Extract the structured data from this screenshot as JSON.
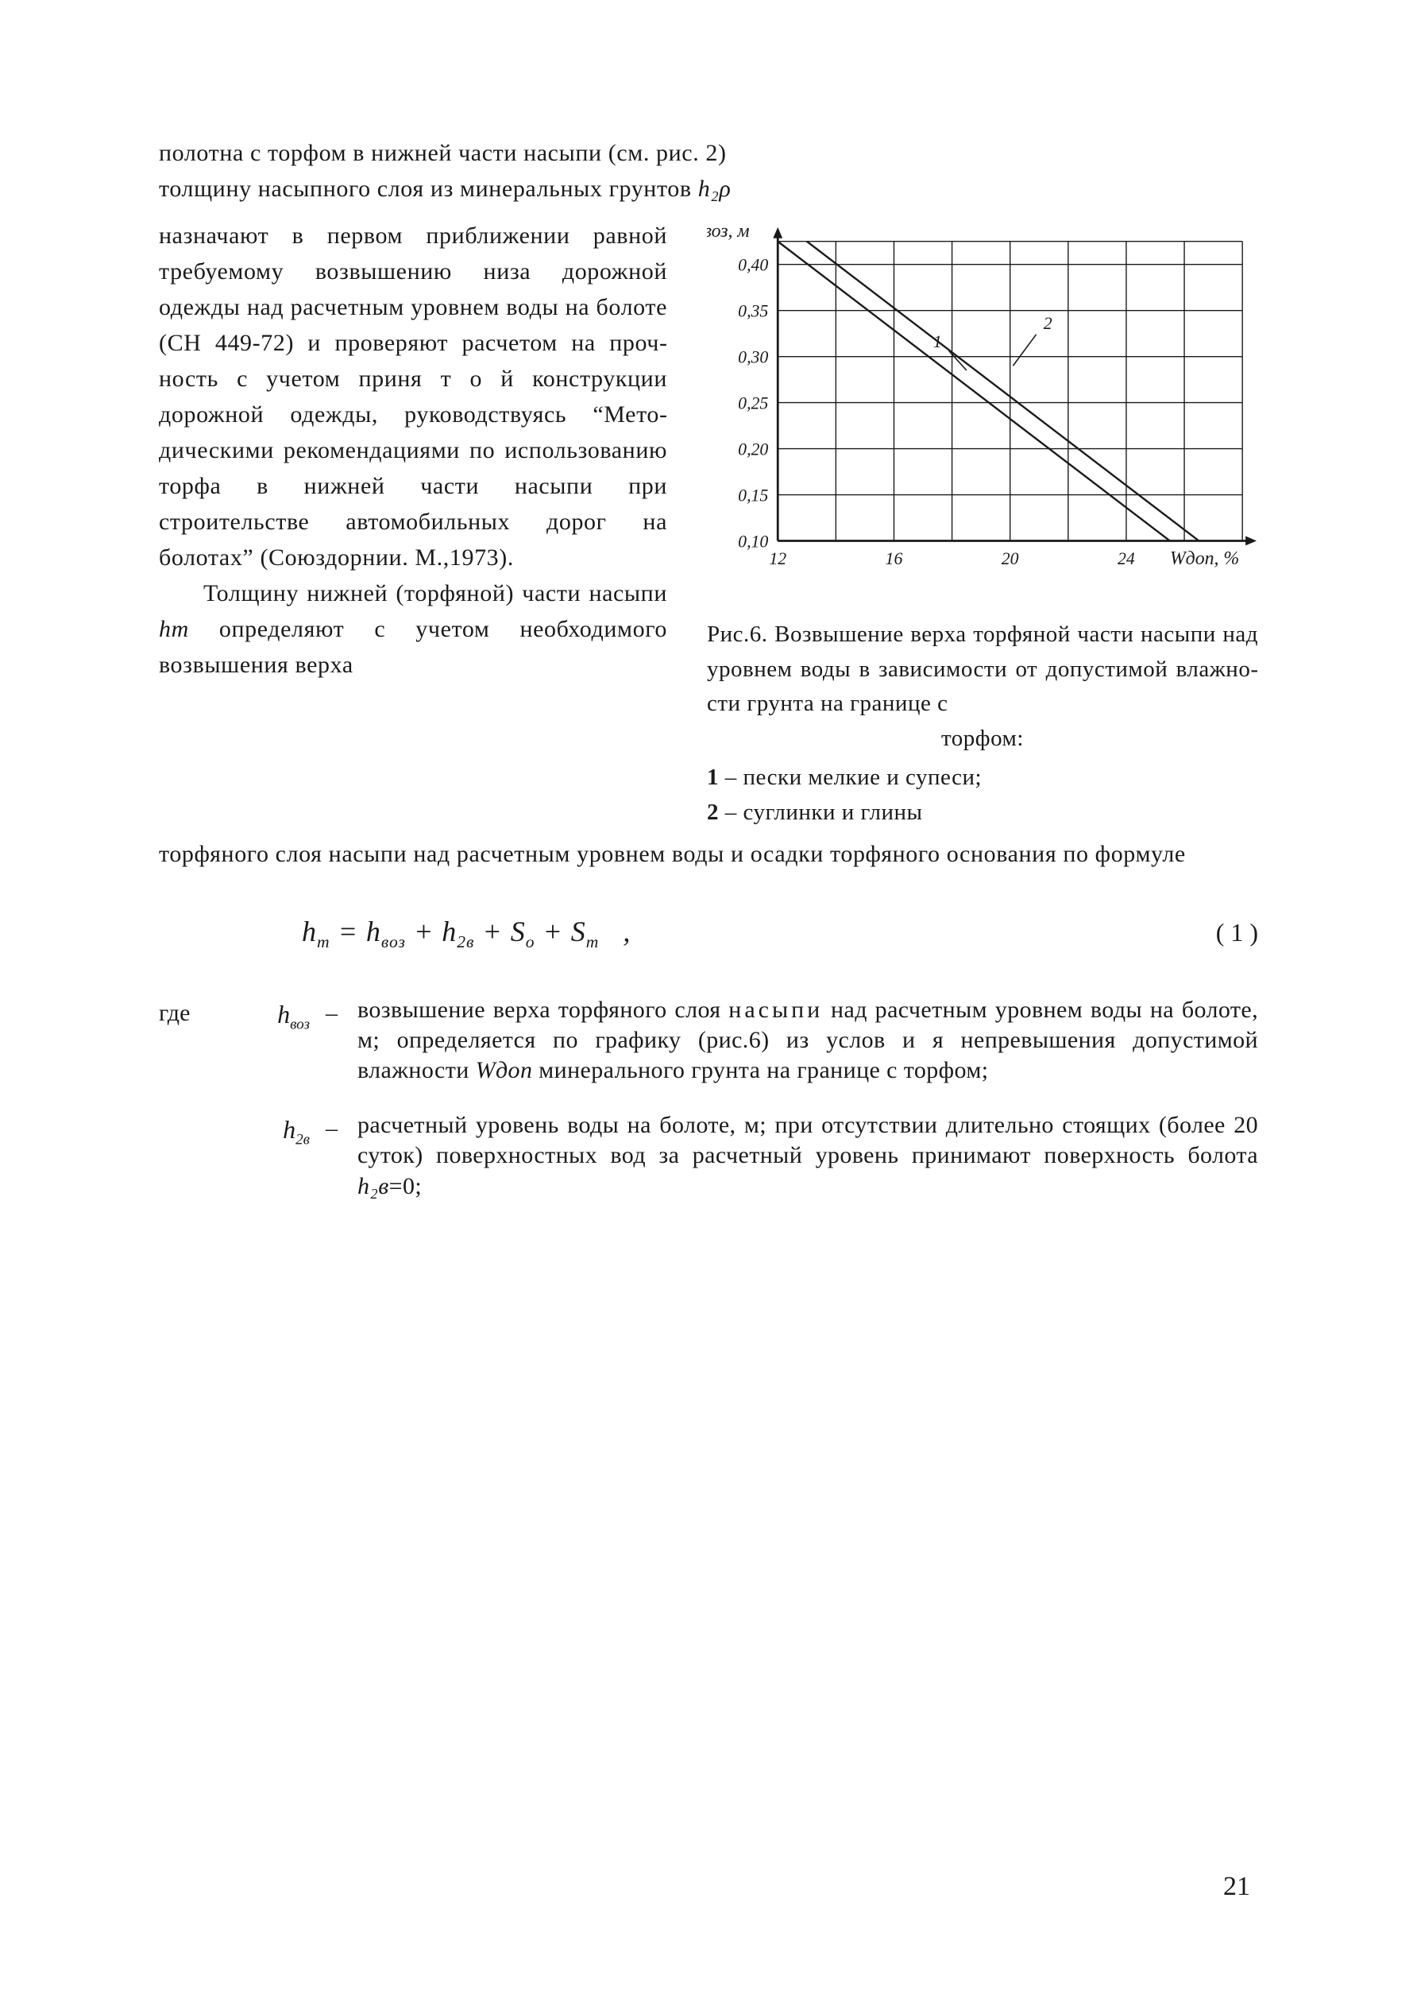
{
  "page_number": "21",
  "intro_line1": "полотна с торфом в нижней части насыпи (см. рис. 2)",
  "intro_line2_a": "толщину насыпного слоя из минеральных грунтов ",
  "intro_sym": "h₂ρ",
  "left_para1": "назначают в первом при­ближении равной требуемо­му возвышению низа до­рожной одежды над рас­четным уровнем воды на болоте (СН 449-72) и про­веряют расчетом на проч­ность с учетом приня т о й конструкции дорожной одеж­ды, руководствуясь “Мето­дическими рекомендациями по использованию торфа в нижней части насыпи при строительстве автомобиль­ных дорог на болотах” (Союз­дорнии. М.,1973).",
  "left_para2_a": "Толщину нижней (торфя­ной) части насыпи ",
  "left_para2_sym": "hт",
  "left_para2_b": " определяют с учетом необ­ходимого возвышения верха",
  "figure": {
    "caption_a": "Рис.6. Возвышение верха торфяной части насыпи над уровнем воды в зависимо­сти от допустимой влажно­сти грунта на границе с",
    "caption_word": "торфом:",
    "legend_1": "1 – пески мелкие и супеси;",
    "legend_2": "2 – суглинки и глины",
    "chart": {
      "type": "line",
      "y_axis_label": "hвоз, м",
      "x_axis_label": "Wдоп, %",
      "y_ticks": [
        "0,10",
        "0,15",
        "0,20",
        "0,25",
        "0,30",
        "0,35",
        "0,40"
      ],
      "y_values": [
        0.1,
        0.15,
        0.2,
        0.25,
        0.3,
        0.35,
        0.4
      ],
      "x_ticks": [
        "12",
        "16",
        "20",
        "24"
      ],
      "x_values": [
        12,
        16,
        20,
        24,
        28
      ],
      "xlim": [
        12,
        28
      ],
      "ylim": [
        0.1,
        0.425
      ],
      "series": [
        {
          "label": "1",
          "points": [
            [
              12,
              0.425
            ],
            [
              25.5,
              0.1
            ]
          ],
          "color": "#1a1a1a",
          "label_pos": [
            17.5,
            0.31
          ]
        },
        {
          "label": "2",
          "points": [
            [
              13.0,
              0.425
            ],
            [
              26.5,
              0.1
            ]
          ],
          "color": "#1a1a1a",
          "label_pos": [
            21.3,
            0.33
          ]
        }
      ],
      "grid_color": "#1a1a1a",
      "background_color": "#ffffff",
      "line_width": 2.4,
      "axis_line_width": 2.8,
      "font_size_ticks": 22,
      "font_size_labels": 24,
      "font_style_labels": "italic"
    }
  },
  "after_cols": "торфяного слоя насыпи над расчетным уровнем воды и осадки торфяного основания по формуле",
  "formula_text": "hт = hвоз + h₂в + Sо + Sт   ,",
  "eq_num": "( 1 )",
  "def1_where": "где",
  "def1_sym": "hвоз",
  "def1_text_a": "возвышение верха торфяного слоя ",
  "def1_text_spread": "насыпи",
  "def1_text_b": " над расчетным уровнем воды на болоте, м; определяется по графику (рис.6) из услов и я непревышения допустимой влажности ",
  "def1_text_sym": "Wдоп",
  "def1_text_c": " минерального грунта на границе с торфом;",
  "def2_sym": "h₂в",
  "def2_text_a": "расчетный уровень воды на болоте, м; при отсутствии длительно стоящих (более 20 су­ток) поверхностных вод за расчетный уро­вень принимают поверхность болота ",
  "def2_text_sym": "h₂в",
  "def2_text_b": "=0;"
}
